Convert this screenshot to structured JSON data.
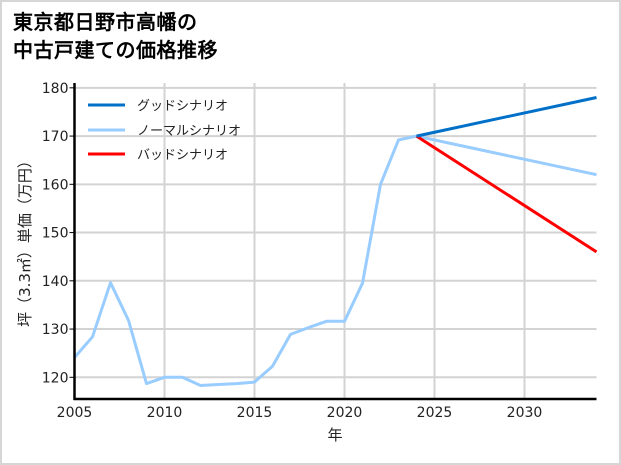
{
  "title": {
    "line1": "東京都日野市高幡の",
    "line2": "中古戸建ての価格推移"
  },
  "axes": {
    "xlabel": "年",
    "ylabel": "坪（3.3㎡）単価（万円）"
  },
  "legend": {
    "items": [
      {
        "label": "グッドシナリオ",
        "color": "#0070C8"
      },
      {
        "label": "ノーマルシナリオ",
        "color": "#99CCFF"
      },
      {
        "label": "バッドシナリオ",
        "color": "#FF0000"
      }
    ]
  },
  "chart_data": {
    "type": "line",
    "title": "東京都日野市高幡の中古戸建ての価格推移",
    "xlabel": "年",
    "ylabel": "坪（3.3㎡）単価（万円）",
    "xlim": [
      2005,
      2034
    ],
    "ylim": [
      115.5,
      181
    ],
    "xticks": [
      2005,
      2010,
      2015,
      2020,
      2025,
      2030
    ],
    "yticks": [
      120,
      130,
      140,
      150,
      160,
      170,
      180
    ],
    "grid": true,
    "legend_position": "upper left",
    "series": [
      {
        "name": "ノーマルシナリオ (実績)",
        "color": "#99CCFF",
        "x": [
          2005,
          2006,
          2007,
          2008,
          2009,
          2010,
          2011,
          2012,
          2013,
          2014,
          2015,
          2016,
          2017,
          2018,
          2019,
          2020,
          2021,
          2022,
          2023,
          2024
        ],
        "values": [
          124.1,
          128.4,
          139.6,
          131.8,
          118.7,
          120.0,
          120.0,
          118.3,
          118.5,
          118.7,
          119.0,
          122.3,
          128.9,
          130.3,
          131.6,
          131.6,
          139.5,
          160.0,
          169.2,
          170.0
        ]
      },
      {
        "name": "グッドシナリオ",
        "color": "#0070C8",
        "x": [
          2024,
          2034
        ],
        "values": [
          170.0,
          178.0
        ]
      },
      {
        "name": "ノーマルシナリオ",
        "color": "#99CCFF",
        "x": [
          2024,
          2034
        ],
        "values": [
          170.0,
          162.0
        ]
      },
      {
        "name": "バッドシナリオ",
        "color": "#FF0000",
        "x": [
          2024,
          2034
        ],
        "values": [
          170.0,
          146.0
        ]
      }
    ]
  }
}
